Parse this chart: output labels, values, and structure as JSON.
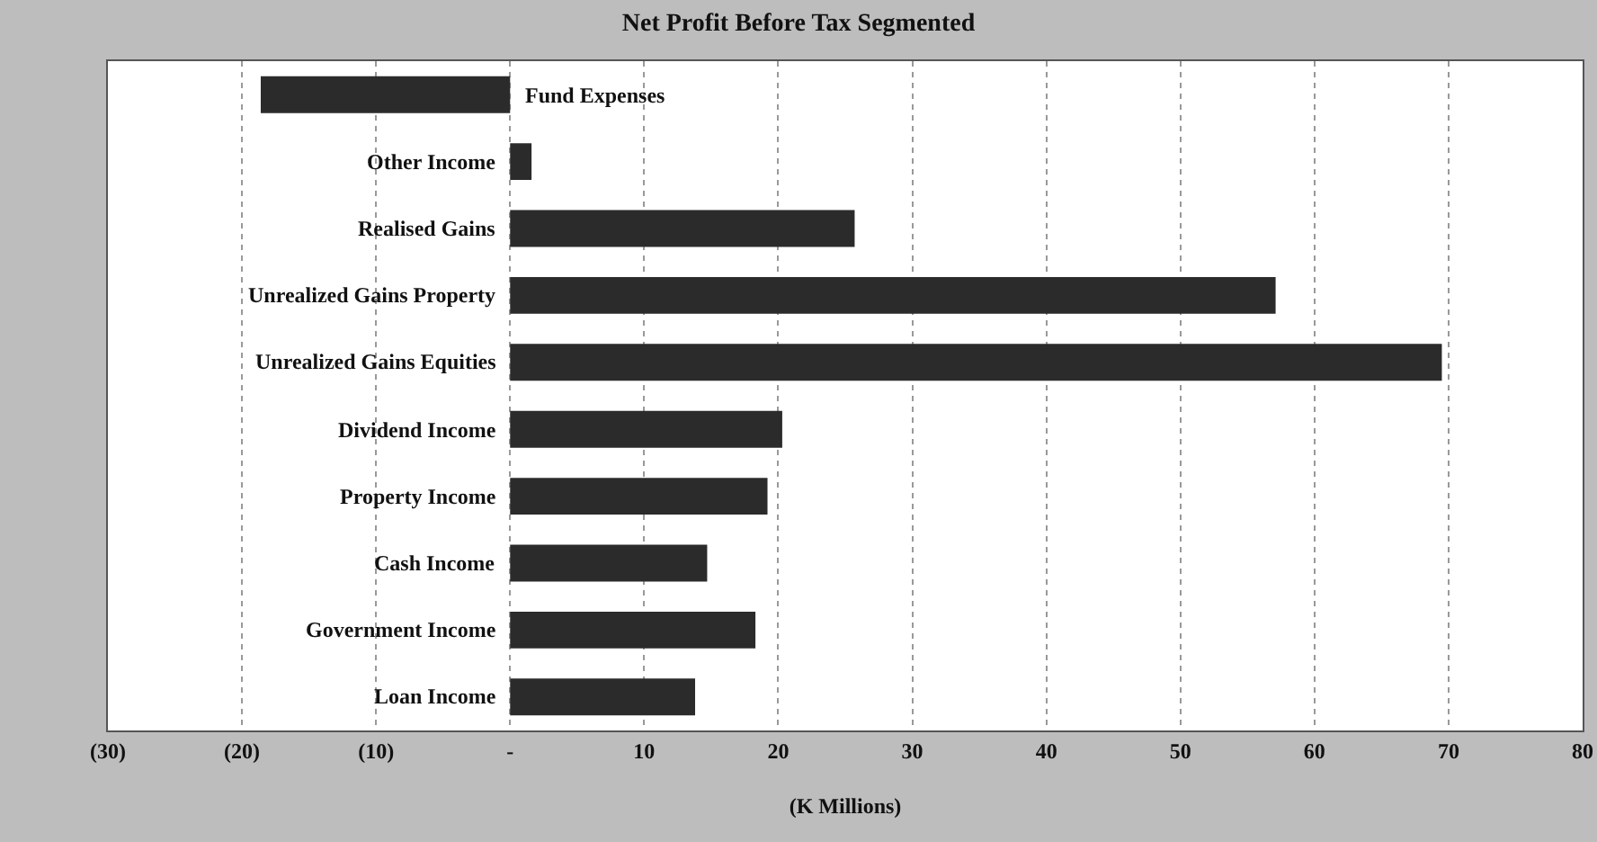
{
  "chart_data": {
    "type": "bar",
    "orientation": "horizontal",
    "title": "Net Profit Before Tax Segmented",
    "xlabel": "(K Millions)",
    "categories": [
      "Fund Expenses",
      "Other Income",
      "Realised Gains",
      "Unrealized Gains Property",
      "Unrealized Gains Equities",
      "Dividend Income",
      "Property Income",
      "Cash Income",
      "Government Income",
      "Loan Income"
    ],
    "values": [
      -18.6,
      1.6,
      25.7,
      57.1,
      69.5,
      20.3,
      19.2,
      14.7,
      18.3,
      13.8
    ],
    "color": "#2b2b2b",
    "xlim": [
      -30,
      80
    ],
    "xticks": [
      {
        "value": -30,
        "label": "(30)"
      },
      {
        "value": -20,
        "label": "(20)"
      },
      {
        "value": -10,
        "label": "(10)"
      },
      {
        "value": 0,
        "label": "-"
      },
      10,
      20,
      30,
      40,
      50,
      60,
      70,
      80
    ],
    "grid": "x",
    "legend": false
  }
}
